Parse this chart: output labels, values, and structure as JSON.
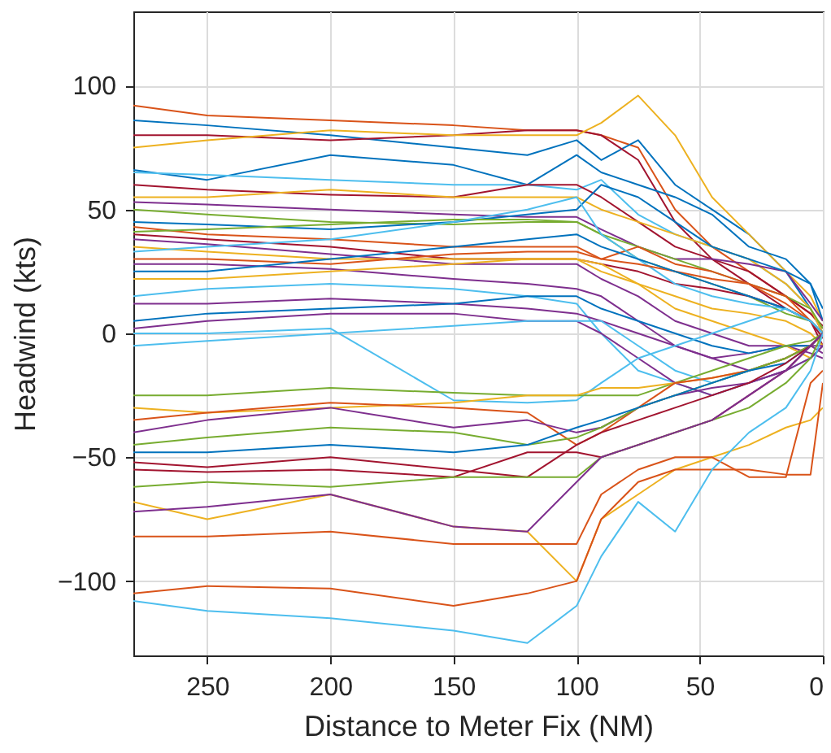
{
  "chart_data": {
    "type": "line",
    "xlabel": "Distance to Meter Fix (NM)",
    "ylabel": "Headwind (kts)",
    "x": [
      280,
      250,
      200,
      150,
      120,
      100,
      90,
      75,
      60,
      45,
      30,
      15,
      5,
      0
    ],
    "xlim": [
      280,
      0
    ],
    "ylim": [
      -130,
      130
    ],
    "xticks": [
      250,
      200,
      150,
      100,
      50,
      0
    ],
    "yticks": [
      -100,
      -50,
      0,
      50,
      100
    ],
    "grid": true,
    "series": [
      {
        "color": "#d95319",
        "values": [
          92,
          88,
          86,
          84,
          82,
          82,
          80,
          75,
          50,
          35,
          25,
          15,
          8,
          2
        ]
      },
      {
        "color": "#0072bd",
        "values": [
          86,
          84,
          80,
          75,
          72,
          78,
          70,
          78,
          60,
          50,
          40,
          25,
          10,
          0
        ]
      },
      {
        "color": "#a2142f",
        "values": [
          80,
          80,
          78,
          80,
          82,
          82,
          80,
          70,
          45,
          30,
          20,
          10,
          5,
          -2
        ]
      },
      {
        "color": "#edb120",
        "values": [
          75,
          78,
          82,
          80,
          80,
          80,
          85,
          96,
          80,
          55,
          40,
          25,
          15,
          5
        ]
      },
      {
        "color": "#0072bd",
        "values": [
          66,
          62,
          72,
          68,
          60,
          72,
          65,
          60,
          55,
          48,
          35,
          30,
          20,
          5
        ]
      },
      {
        "color": "#4dbeee",
        "values": [
          65,
          64,
          62,
          60,
          60,
          58,
          62,
          48,
          40,
          35,
          30,
          20,
          10,
          0
        ]
      },
      {
        "color": "#a2142f",
        "values": [
          60,
          58,
          56,
          55,
          60,
          60,
          55,
          45,
          35,
          30,
          25,
          15,
          8,
          3
        ]
      },
      {
        "color": "#edb120",
        "values": [
          55,
          55,
          58,
          55,
          55,
          55,
          50,
          45,
          40,
          35,
          30,
          20,
          10,
          0
        ]
      },
      {
        "color": "#7e2f8e",
        "values": [
          53,
          52,
          50,
          48,
          47,
          47,
          42,
          35,
          30,
          30,
          28,
          25,
          12,
          5
        ]
      },
      {
        "color": "#77ac30",
        "values": [
          50,
          48,
          45,
          44,
          45,
          45,
          40,
          35,
          30,
          25,
          20,
          15,
          10,
          2
        ]
      },
      {
        "color": "#0072bd",
        "values": [
          45,
          44,
          42,
          45,
          48,
          50,
          60,
          55,
          45,
          35,
          30,
          25,
          20,
          10
        ]
      },
      {
        "color": "#d95319",
        "values": [
          43,
          40,
          38,
          35,
          35,
          35,
          30,
          35,
          28,
          25,
          20,
          15,
          5,
          0
        ]
      },
      {
        "color": "#77ac30",
        "values": [
          41,
          42,
          44,
          46,
          46,
          45,
          40,
          30,
          25,
          20,
          15,
          8,
          5,
          0
        ]
      },
      {
        "color": "#a2142f",
        "values": [
          40,
          38,
          35,
          30,
          30,
          30,
          28,
          25,
          20,
          18,
          15,
          10,
          5,
          -5
        ]
      },
      {
        "color": "#7e2f8e",
        "values": [
          38,
          36,
          32,
          28,
          28,
          28,
          22,
          15,
          5,
          0,
          -5,
          -5,
          -8,
          -10
        ]
      },
      {
        "color": "#edb120",
        "values": [
          35,
          33,
          30,
          30,
          30,
          30,
          25,
          20,
          15,
          10,
          8,
          5,
          0,
          -5
        ]
      },
      {
        "color": "#4dbeee",
        "values": [
          33,
          35,
          38,
          45,
          50,
          55,
          40,
          30,
          20,
          15,
          12,
          10,
          5,
          0
        ]
      },
      {
        "color": "#d95319",
        "values": [
          30,
          30,
          28,
          32,
          33,
          33,
          30,
          28,
          25,
          22,
          20,
          12,
          5,
          0
        ]
      },
      {
        "color": "#7e2f8e",
        "values": [
          28,
          28,
          26,
          22,
          20,
          18,
          15,
          5,
          -5,
          -10,
          -8,
          -5,
          -5,
          -8
        ]
      },
      {
        "color": "#0072bd",
        "values": [
          25,
          25,
          30,
          35,
          38,
          40,
          35,
          30,
          25,
          20,
          15,
          10,
          5,
          0
        ]
      },
      {
        "color": "#edb120",
        "values": [
          22,
          22,
          25,
          28,
          30,
          30,
          28,
          20,
          10,
          5,
          0,
          -5,
          -10,
          -5
        ]
      },
      {
        "color": "#4dbeee",
        "values": [
          15,
          18,
          20,
          18,
          15,
          12,
          0,
          -15,
          -20,
          -25,
          -20,
          -15,
          -10,
          -5
        ]
      },
      {
        "color": "#7e2f8e",
        "values": [
          12,
          12,
          14,
          12,
          10,
          8,
          5,
          0,
          -5,
          -10,
          -15,
          -10,
          -5,
          -5
        ]
      },
      {
        "color": "#0072bd",
        "values": [
          5,
          8,
          10,
          12,
          15,
          15,
          10,
          5,
          0,
          -5,
          -8,
          -5,
          -5,
          0
        ]
      },
      {
        "color": "#7e2f8e",
        "values": [
          2,
          5,
          8,
          8,
          5,
          5,
          0,
          -10,
          -20,
          -25,
          -20,
          -15,
          -10,
          -5
        ]
      },
      {
        "color": "#4dbeee",
        "values": [
          -5,
          -3,
          0,
          3,
          5,
          5,
          5,
          -5,
          -15,
          -20,
          -15,
          -10,
          -5,
          0
        ]
      },
      {
        "color": "#4dbeee",
        "values": [
          0,
          0,
          2,
          -27,
          -28,
          -27,
          -20,
          -10,
          -5,
          0,
          5,
          10,
          5,
          0
        ]
      },
      {
        "color": "#77ac30",
        "values": [
          -25,
          -25,
          -22,
          -24,
          -25,
          -25,
          -25,
          -25,
          -20,
          -15,
          -10,
          -5,
          -3,
          0
        ]
      },
      {
        "color": "#edb120",
        "values": [
          -30,
          -32,
          -30,
          -28,
          -25,
          -25,
          -22,
          -22,
          -20,
          -18,
          -15,
          -10,
          -5,
          0
        ]
      },
      {
        "color": "#d95319",
        "values": [
          -35,
          -32,
          -28,
          -30,
          -32,
          -45,
          -40,
          -30,
          -20,
          -18,
          -15,
          -10,
          -5,
          0
        ]
      },
      {
        "color": "#7e2f8e",
        "values": [
          -40,
          -35,
          -30,
          -38,
          -35,
          -40,
          -38,
          -30,
          -25,
          -22,
          -20,
          -15,
          -5,
          0
        ]
      },
      {
        "color": "#77ac30",
        "values": [
          -45,
          -42,
          -38,
          -40,
          -45,
          -42,
          -38,
          -30,
          -25,
          -20,
          -15,
          -10,
          -5,
          0
        ]
      },
      {
        "color": "#0072bd",
        "values": [
          -48,
          -48,
          -45,
          -48,
          -45,
          -38,
          -35,
          -30,
          -25,
          -20,
          -15,
          -12,
          -5,
          0
        ]
      },
      {
        "color": "#a2142f",
        "values": [
          -52,
          -54,
          -50,
          -55,
          -58,
          -45,
          -40,
          -35,
          -30,
          -25,
          -20,
          -12,
          -5,
          0
        ]
      },
      {
        "color": "#a2142f",
        "values": [
          -55,
          -56,
          -55,
          -58,
          -48,
          -48,
          -50,
          -45,
          -40,
          -35,
          -25,
          -15,
          -5,
          0
        ]
      },
      {
        "color": "#77ac30",
        "values": [
          -62,
          -60,
          -62,
          -58,
          -58,
          -58,
          -50,
          -45,
          -40,
          -35,
          -30,
          -20,
          -10,
          0
        ]
      },
      {
        "color": "#edb120",
        "values": [
          -68,
          -75,
          -65,
          -78,
          -80,
          -100,
          -75,
          -65,
          -55,
          -50,
          -45,
          -38,
          -35,
          -30
        ]
      },
      {
        "color": "#7e2f8e",
        "values": [
          -72,
          -70,
          -65,
          -78,
          -80,
          -60,
          -50,
          -45,
          -40,
          -35,
          -25,
          -15,
          -5,
          0
        ]
      },
      {
        "color": "#d95319",
        "values": [
          -82,
          -82,
          -80,
          -85,
          -85,
          -85,
          -65,
          -55,
          -50,
          -50,
          -58,
          -58,
          -20,
          -15
        ]
      },
      {
        "color": "#d95319",
        "values": [
          -105,
          -102,
          -103,
          -110,
          -105,
          -100,
          -75,
          -60,
          -55,
          -55,
          -55,
          -57,
          -57,
          -20
        ]
      },
      {
        "color": "#4dbeee",
        "values": [
          -108,
          -112,
          -115,
          -120,
          -125,
          -110,
          -90,
          -68,
          -80,
          -55,
          -40,
          -30,
          -15,
          0
        ]
      }
    ]
  }
}
